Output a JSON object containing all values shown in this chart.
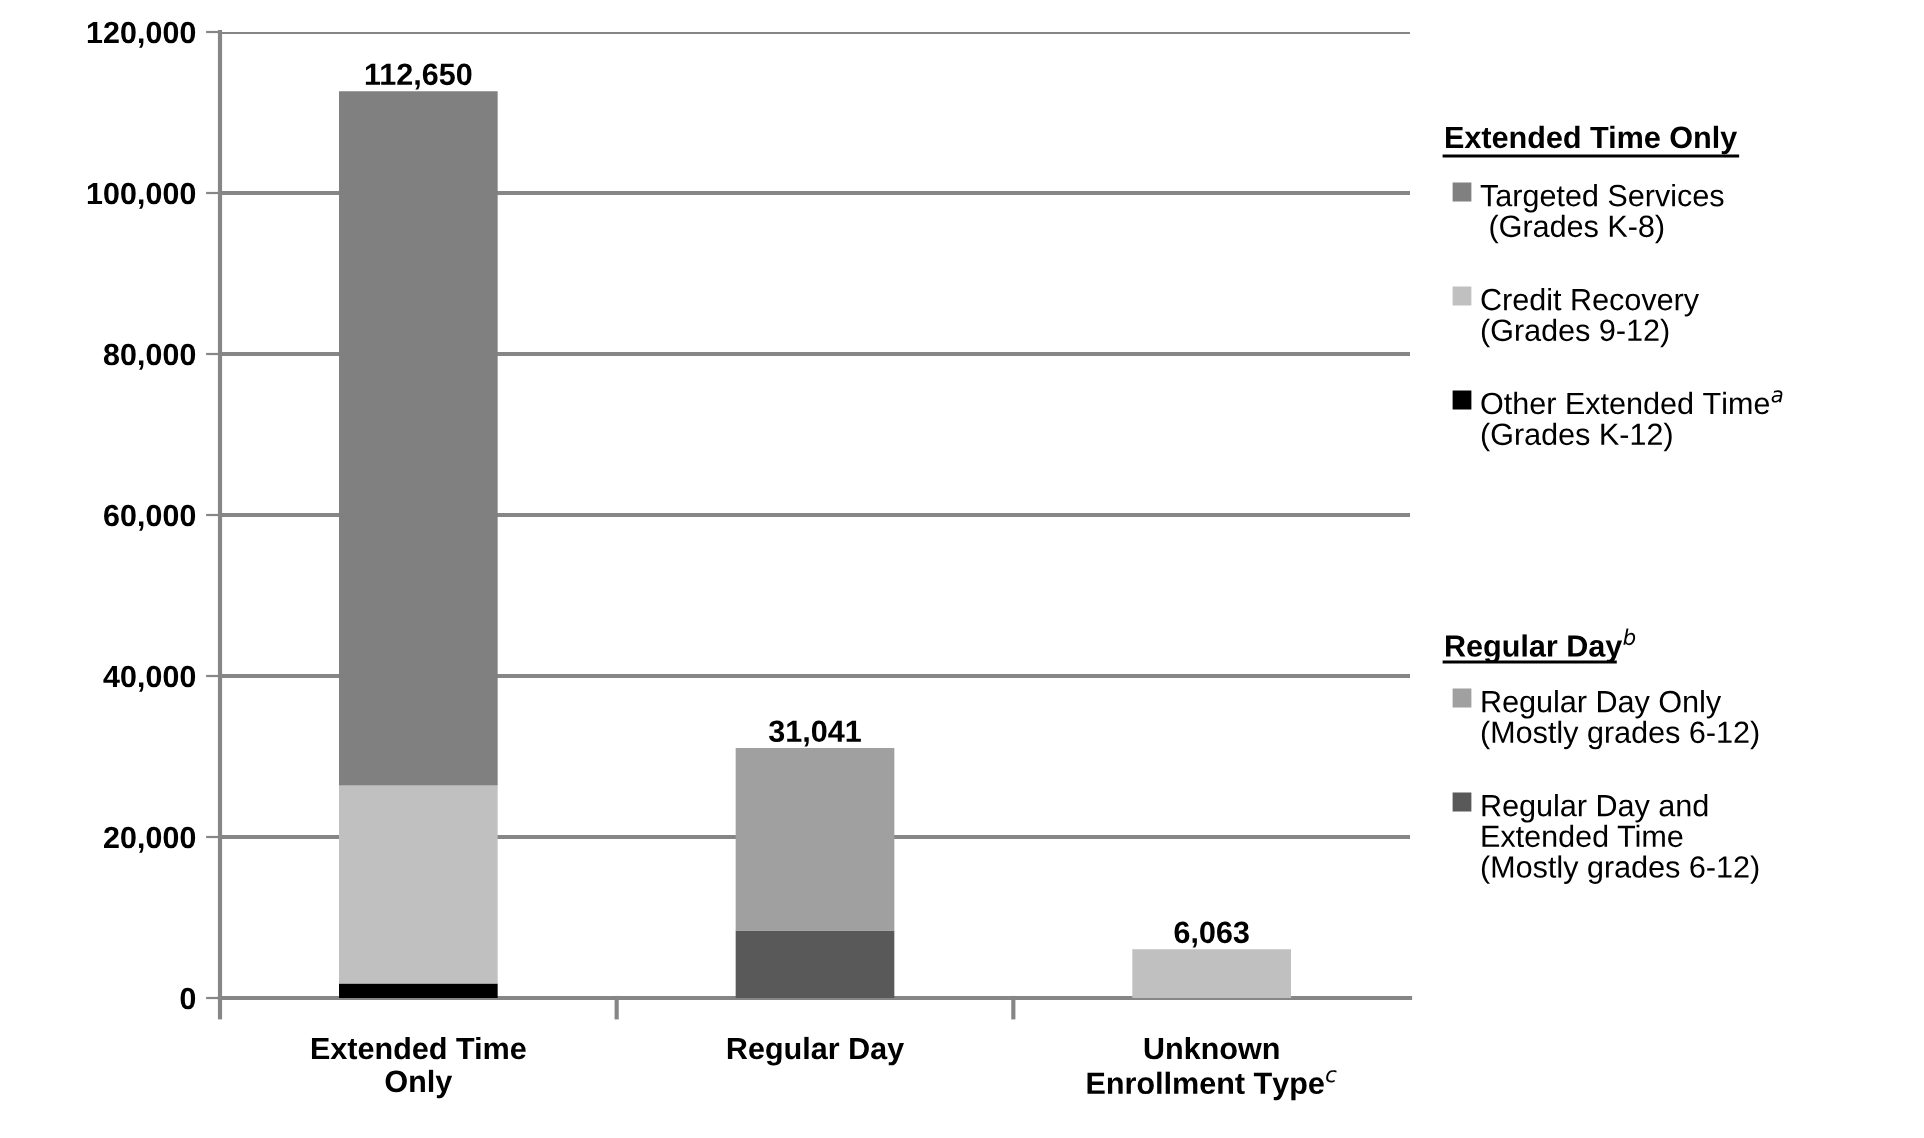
{
  "chart_data": {
    "type": "bar",
    "stacked": true,
    "categories": [
      "Extended Time\nOnly",
      "Regular Day",
      "Unknown\nEnrollment Type$^{c}$"
    ],
    "series": [
      {
        "name": "Other Extended Time$^{a}$\n(Grades K-12)",
        "color": "#000000",
        "values": [
          1800,
          null,
          null
        ]
      },
      {
        "name": "Credit Recovery\n(Grades 9-12)",
        "color": "#c0c0c0",
        "values": [
          24600,
          null,
          null
        ]
      },
      {
        "name": "Targeted Services\n (Grades K-8)",
        "color": "#808080",
        "values": [
          86250,
          null,
          null
        ]
      },
      {
        "name": "Regular Day and\nExtended Time\n(Mostly grades 6-12)",
        "color": "#595959",
        "values": [
          null,
          8400,
          null
        ]
      },
      {
        "name": "Regular Day Only\n(Mostly grades 6-12)",
        "color": "#a0a0a0",
        "values": [
          null,
          22641,
          null
        ]
      },
      {
        "color": "#c0c0c0",
        "values": [
          null,
          null,
          6063
        ]
      }
    ],
    "totals": [
      "112,650",
      "31,041",
      "6,063"
    ],
    "ylim": [
      0,
      120000
    ],
    "yticks": [
      {
        "value": 0,
        "label": "0"
      },
      {
        "value": 20000,
        "label": "20,000"
      },
      {
        "value": 40000,
        "label": "40,000"
      },
      {
        "value": 60000,
        "label": "60,000"
      },
      {
        "value": 80000,
        "label": "80,000"
      },
      {
        "value": 100000,
        "label": "100,000"
      },
      {
        "value": 120000,
        "label": "120,000"
      }
    ],
    "grid": "y",
    "legend": "right",
    "annotations": [
      "Extended Time Only",
      "Regular Day$^{b}$"
    ]
  }
}
